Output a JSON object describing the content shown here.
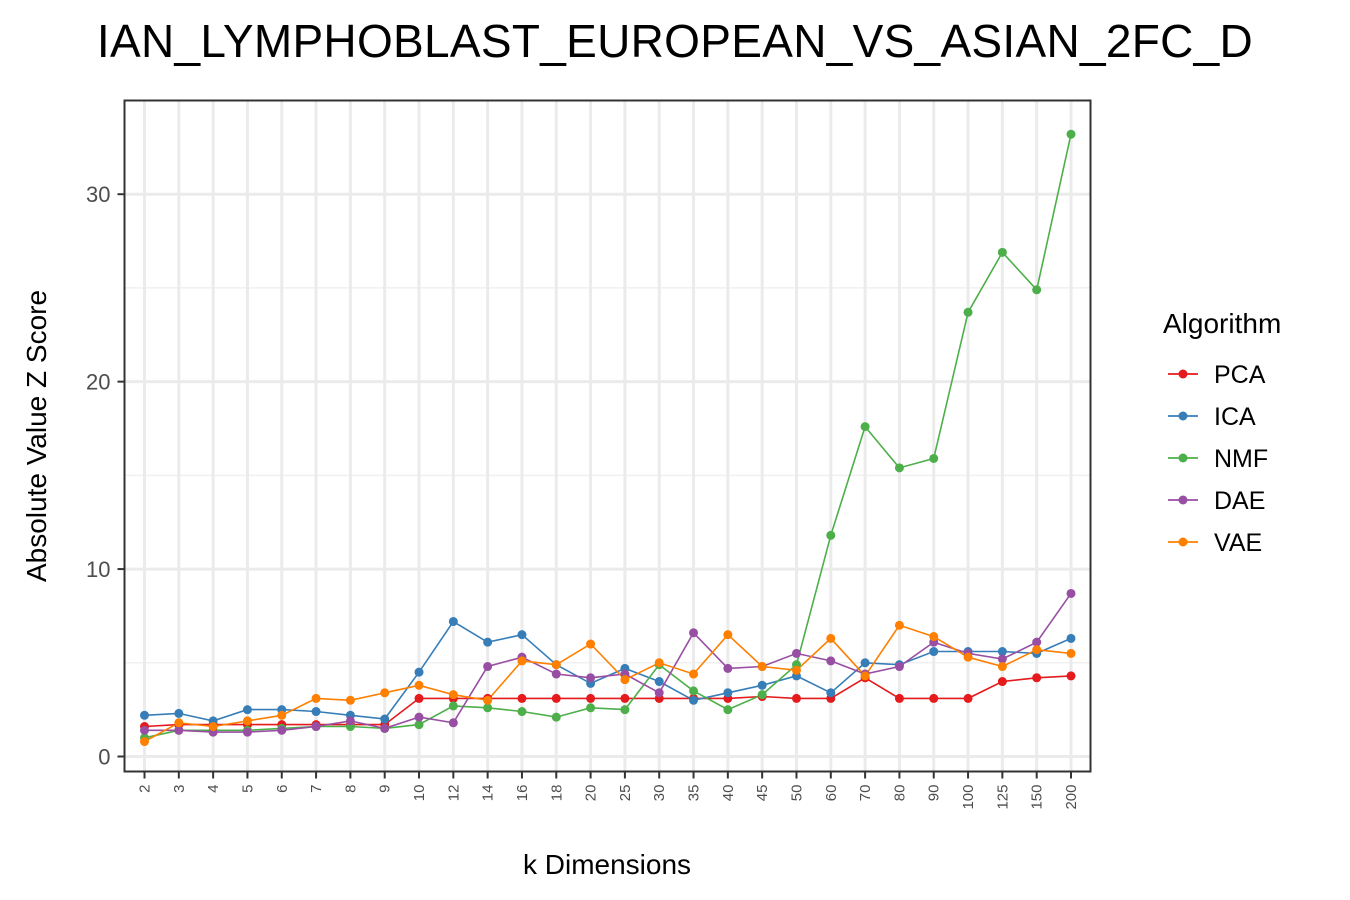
{
  "chart_data": {
    "type": "line",
    "title": "IAN_LYMPHOBLAST_EUROPEAN_VS_ASIAN_2FC_D",
    "xlabel": "k Dimensions",
    "ylabel": "Absolute Value Z Score",
    "categories": [
      "2",
      "3",
      "4",
      "5",
      "6",
      "7",
      "8",
      "9",
      "10",
      "12",
      "14",
      "16",
      "18",
      "20",
      "25",
      "30",
      "35",
      "40",
      "45",
      "50",
      "60",
      "70",
      "80",
      "90",
      "100",
      "125",
      "150",
      "200"
    ],
    "ylim": [
      -0.8,
      35
    ],
    "yticks": [
      0,
      10,
      20,
      30
    ],
    "grid": true,
    "legend": {
      "title": "Algorithm",
      "position": "right"
    },
    "series": [
      {
        "name": "PCA",
        "color": "#e41a1c",
        "values": [
          1.6,
          1.7,
          1.7,
          1.7,
          1.7,
          1.7,
          1.7,
          1.7,
          3.1,
          3.1,
          3.1,
          3.1,
          3.1,
          3.1,
          3.1,
          3.1,
          3.1,
          3.1,
          3.2,
          3.1,
          3.1,
          4.2,
          3.1,
          3.1,
          3.1,
          4.0,
          4.2,
          4.3
        ]
      },
      {
        "name": "ICA",
        "color": "#377eb8",
        "values": [
          2.2,
          2.3,
          1.9,
          2.5,
          2.5,
          2.4,
          2.2,
          2.0,
          4.5,
          7.2,
          6.1,
          6.5,
          4.9,
          3.9,
          4.7,
          4.0,
          3.0,
          3.4,
          3.8,
          4.3,
          3.4,
          5.0,
          4.9,
          5.6,
          5.6,
          5.6,
          5.5,
          6.3
        ]
      },
      {
        "name": "NMF",
        "color": "#4daf4a",
        "values": [
          1.0,
          1.4,
          1.4,
          1.4,
          1.5,
          1.6,
          1.6,
          1.5,
          1.7,
          2.7,
          2.6,
          2.4,
          2.1,
          2.6,
          2.5,
          4.9,
          3.5,
          2.5,
          3.3,
          4.9,
          11.8,
          17.6,
          15.4,
          15.9,
          23.7,
          26.9,
          24.9,
          33.2
        ]
      },
      {
        "name": "DAE",
        "color": "#984ea3",
        "values": [
          1.4,
          1.4,
          1.3,
          1.3,
          1.4,
          1.6,
          1.9,
          1.5,
          2.1,
          1.8,
          4.8,
          5.3,
          4.4,
          4.2,
          4.4,
          3.4,
          6.6,
          4.7,
          4.8,
          5.5,
          5.1,
          4.4,
          4.8,
          6.1,
          5.5,
          5.2,
          6.1,
          8.7
        ]
      },
      {
        "name": "VAE",
        "color": "#ff7f00",
        "values": [
          0.8,
          1.8,
          1.6,
          1.9,
          2.2,
          3.1,
          3.0,
          3.4,
          3.8,
          3.3,
          3.0,
          5.1,
          4.9,
          6.0,
          4.1,
          5.0,
          4.4,
          6.5,
          4.8,
          4.6,
          6.3,
          4.3,
          7.0,
          6.4,
          5.3,
          4.8,
          5.7,
          5.5
        ]
      }
    ]
  }
}
